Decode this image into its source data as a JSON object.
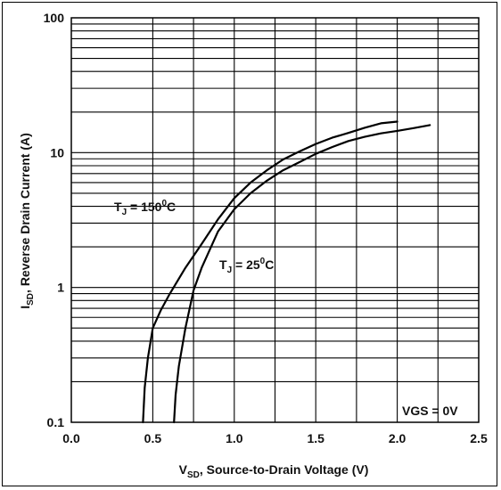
{
  "chart_data": {
    "type": "line",
    "title": "",
    "xlabel": {
      "main": "V",
      "sub": "SD",
      "rest": ", Source-to-Drain Voltage (V)"
    },
    "ylabel": {
      "main": "I",
      "sub": "SD",
      "rest": ", Reverse Drain Current (A)"
    },
    "xlim": [
      0.0,
      2.5
    ],
    "ylim": [
      0.1,
      100
    ],
    "yscale": "log",
    "grid": true,
    "x_ticks": [
      {
        "value": 0.0,
        "label": "0.0"
      },
      {
        "value": 0.5,
        "label": "0.5"
      },
      {
        "value": 1.0,
        "label": "1.0"
      },
      {
        "value": 1.5,
        "label": "1.5"
      },
      {
        "value": 2.0,
        "label": "2.0"
      },
      {
        "value": 2.5,
        "label": "2.5"
      }
    ],
    "x_grid": [
      0.5,
      0.75,
      1.0,
      1.25,
      1.5,
      1.75,
      2.0,
      2.25
    ],
    "y_ticks": [
      {
        "value": 0.1,
        "label": "0.1"
      },
      {
        "value": 1,
        "label": "1"
      },
      {
        "value": 10,
        "label": "10"
      },
      {
        "value": 100,
        "label": "100"
      }
    ],
    "series": [
      {
        "label_main": "T",
        "label_sub": "J",
        "label_rest": " = 150",
        "label_sup": "0",
        "label_unit": "C",
        "x": [
          0.44,
          0.45,
          0.47,
          0.5,
          0.55,
          0.6,
          0.7,
          0.8,
          0.9,
          1.0,
          1.1,
          1.2,
          1.3,
          1.4,
          1.5,
          1.6,
          1.7,
          1.8,
          1.9,
          2.0
        ],
        "y": [
          0.1,
          0.18,
          0.3,
          0.5,
          0.68,
          0.88,
          1.4,
          2.1,
          3.2,
          4.6,
          6.0,
          7.4,
          8.9,
          10.2,
          11.6,
          12.9,
          14.0,
          15.3,
          16.5,
          17.0
        ]
      },
      {
        "label_main": "T",
        "label_sub": "J",
        "label_rest": " = 25",
        "label_sup": "0",
        "label_unit": "C",
        "x": [
          0.63,
          0.64,
          0.66,
          0.7,
          0.75,
          0.8,
          0.9,
          1.0,
          1.1,
          1.2,
          1.3,
          1.4,
          1.5,
          1.6,
          1.7,
          1.8,
          1.9,
          2.0,
          2.1,
          2.2
        ],
        "y": [
          0.1,
          0.16,
          0.26,
          0.5,
          0.95,
          1.4,
          2.6,
          3.8,
          5.0,
          6.2,
          7.4,
          8.5,
          9.8,
          11.0,
          12.2,
          13.1,
          13.9,
          14.5,
          15.2,
          16.0
        ]
      }
    ],
    "annotation": "VGS = 0V"
  }
}
